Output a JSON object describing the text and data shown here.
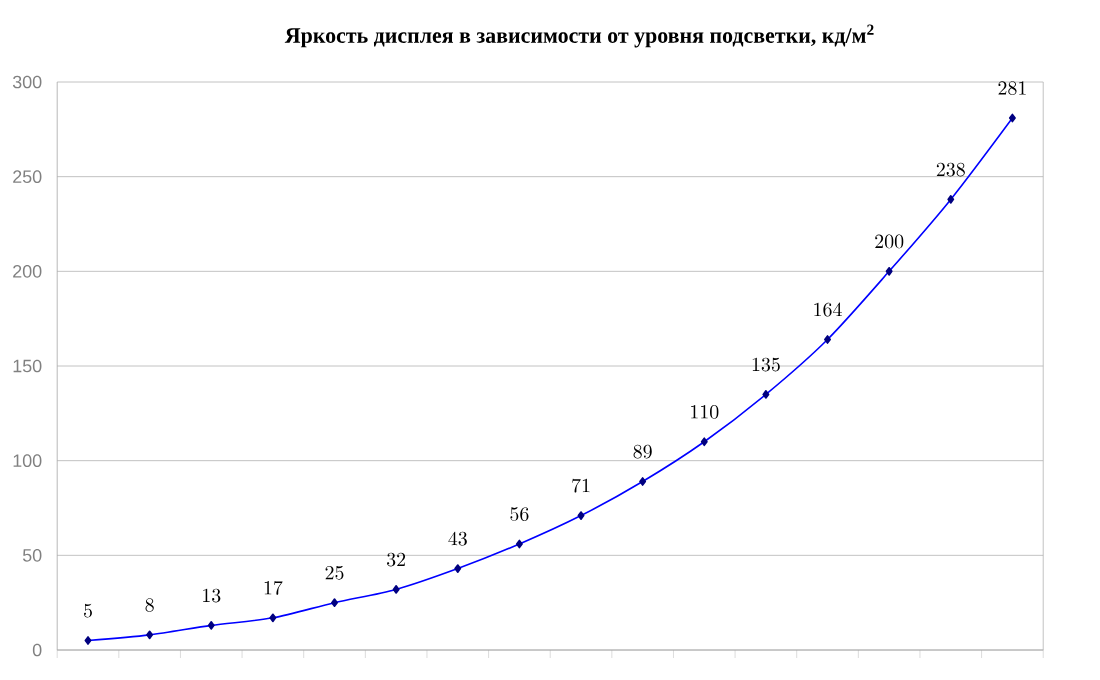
{
  "chart_data": {
    "type": "line",
    "title": "Яркость дисплея в зависимости от уровня подсветки, кд/м$^{2}$",
    "categories": [
      null,
      null,
      null,
      null,
      null,
      null,
      null,
      null,
      null,
      null,
      null,
      null,
      null,
      null,
      null,
      null
    ],
    "series": [
      {
        "color": "#0000ff",
        "values": [
          5,
          8,
          13,
          17,
          25,
          32,
          43,
          56,
          71,
          89,
          110,
          135,
          164,
          200,
          238,
          281
        ]
      }
    ],
    "ylim": [
      0,
      300
    ],
    "yticks": [
      0,
      50,
      100,
      150,
      200,
      250,
      300
    ],
    "grid": "y",
    "marker": "diamond",
    "line_style": "solid",
    "data_labels": true
  }
}
